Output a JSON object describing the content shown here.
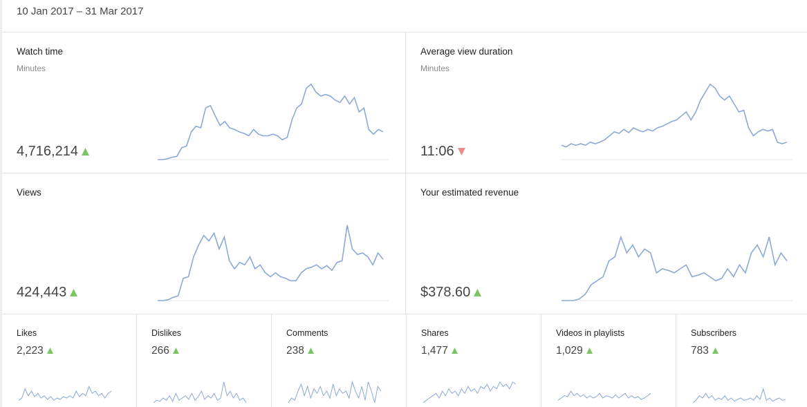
{
  "header": {
    "date_range": "10 Jan 2017 – 31 Mar 2017"
  },
  "line_color": "#8aa9d6",
  "trend_colors": {
    "up": "#7cc464",
    "down": "#ee8a8a"
  },
  "metrics": [
    {
      "title": "Watch time",
      "unit": "Minutes",
      "value": "4,716,214",
      "trend": "up",
      "ylim": [
        0,
        100
      ],
      "spark": [
        0,
        0,
        1,
        3,
        4,
        15,
        17,
        35,
        42,
        40,
        65,
        68,
        55,
        43,
        48,
        40,
        38,
        35,
        33,
        30,
        38,
        32,
        30,
        30,
        32,
        30,
        25,
        28,
        50,
        65,
        70,
        90,
        95,
        85,
        80,
        82,
        80,
        75,
        72,
        80,
        70,
        78,
        60,
        65,
        38,
        32,
        38,
        35
      ]
    },
    {
      "title": "Average view duration",
      "unit": "Minutes",
      "value": "11:06",
      "trend": "down",
      "ylim": [
        0,
        100
      ],
      "spark": [
        18,
        16,
        20,
        18,
        20,
        18,
        22,
        20,
        22,
        25,
        30,
        35,
        33,
        38,
        34,
        40,
        37,
        35,
        38,
        36,
        40,
        42,
        45,
        48,
        50,
        55,
        60,
        50,
        60,
        75,
        85,
        95,
        90,
        80,
        75,
        80,
        70,
        60,
        62,
        40,
        30,
        35,
        38,
        36,
        38,
        22,
        20,
        22
      ]
    },
    {
      "title": "Views",
      "value": "424,443",
      "trend": "up",
      "ylim": [
        0,
        100
      ],
      "spark": [
        0,
        0,
        1,
        4,
        6,
        28,
        30,
        55,
        70,
        82,
        75,
        85,
        65,
        80,
        50,
        40,
        48,
        45,
        55,
        40,
        45,
        35,
        30,
        35,
        30,
        28,
        25,
        25,
        35,
        40,
        42,
        45,
        40,
        44,
        38,
        48,
        50,
        95,
        65,
        58,
        60,
        55,
        45,
        60,
        52
      ]
    },
    {
      "title": "Your estimated revenue",
      "value": "$378.60",
      "trend": "up",
      "ylim": [
        0,
        100
      ],
      "spark": [
        0,
        0,
        0,
        2,
        8,
        20,
        25,
        30,
        50,
        55,
        80,
        60,
        70,
        55,
        65,
        60,
        35,
        40,
        38,
        35,
        40,
        45,
        30,
        32,
        35,
        30,
        25,
        28,
        40,
        30,
        45,
        35,
        60,
        70,
        55,
        80,
        45,
        60,
        50
      ]
    },
    {
      "title": "Likes",
      "value": "2,223",
      "trend": "up",
      "ylim": [
        0,
        60
      ],
      "spark": [
        10,
        15,
        35,
        20,
        30,
        18,
        25,
        15,
        20,
        12,
        18,
        10,
        15,
        12,
        18,
        15,
        20,
        15,
        30,
        18,
        25,
        20,
        40,
        25,
        30,
        20,
        25,
        15,
        25,
        30
      ]
    },
    {
      "title": "Dislikes",
      "value": "266",
      "trend": "up",
      "ylim": [
        0,
        60
      ],
      "spark": [
        5,
        10,
        8,
        15,
        10,
        20,
        8,
        25,
        10,
        15,
        20,
        12,
        25,
        10,
        18,
        30,
        12,
        20,
        15,
        25,
        10,
        15,
        50,
        20,
        30,
        15,
        25,
        10,
        15,
        5
      ]
    },
    {
      "title": "Comments",
      "value": "238",
      "trend": "up",
      "ylim": [
        0,
        60
      ],
      "spark": [
        5,
        15,
        10,
        30,
        45,
        20,
        40,
        15,
        35,
        25,
        40,
        20,
        30,
        15,
        45,
        20,
        35,
        25,
        30,
        15,
        50,
        30,
        15,
        40,
        10,
        50,
        30,
        5,
        40,
        30
      ]
    },
    {
      "title": "Shares",
      "value": "1,477",
      "trend": "up",
      "ylim": [
        0,
        60
      ],
      "spark": [
        5,
        10,
        15,
        20,
        25,
        15,
        30,
        20,
        35,
        25,
        30,
        20,
        35,
        25,
        40,
        30,
        35,
        25,
        40,
        35,
        45,
        30,
        40,
        35,
        50,
        40,
        45,
        35,
        50,
        45
      ]
    },
    {
      "title": "Videos in playlists",
      "value": "1,029",
      "trend": "up",
      "ylim": [
        0,
        60
      ],
      "spark": [
        10,
        15,
        20,
        18,
        30,
        20,
        25,
        18,
        22,
        15,
        20,
        15,
        18,
        25,
        15,
        20,
        18,
        15,
        22,
        15,
        20,
        25,
        15,
        20,
        15,
        18,
        12,
        15,
        20,
        25
      ]
    },
    {
      "title": "Subscribers",
      "value": "783",
      "trend": "up",
      "ylim": [
        0,
        60
      ],
      "spark": [
        5,
        10,
        20,
        15,
        25,
        15,
        20,
        10,
        15,
        12,
        20,
        10,
        15,
        8,
        12,
        15,
        10,
        12,
        15,
        10,
        20,
        12,
        35,
        10,
        15,
        8,
        12,
        15,
        10,
        12
      ]
    }
  ]
}
